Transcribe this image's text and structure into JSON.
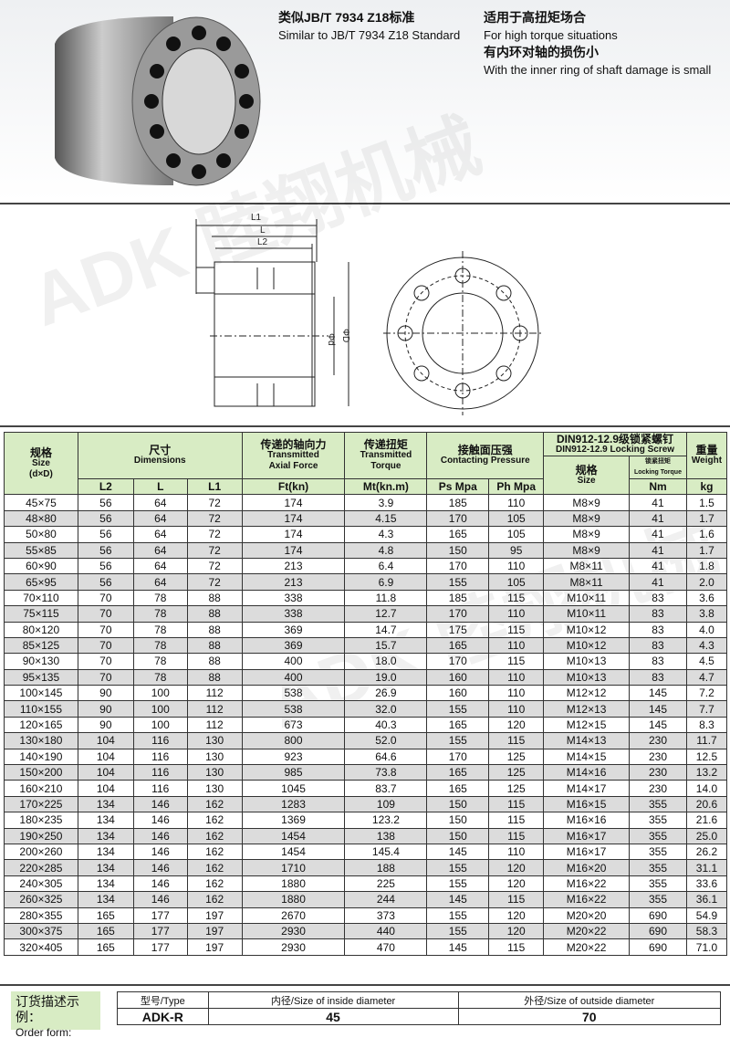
{
  "features": [
    {
      "cn": "类似JB/T 7934 Z18标准",
      "en": "Similar to JB/T 7934 Z18 Standard"
    },
    {
      "cn": "适用于高扭矩场合",
      "en": "For high torque situations"
    },
    {
      "cn": "有内环对轴的损伤小",
      "en": "With the inner ring of shaft damage is small"
    }
  ],
  "drawing": {
    "l1": "L1",
    "l": "L",
    "l2": "L2",
    "d": "Φd",
    "D": "ΦD"
  },
  "watermark": "ADK 睦翔机械",
  "table": {
    "headers": {
      "size_cn": "规格",
      "size_en": "Size",
      "size_dxD": "(d×D)",
      "dim_cn": "尺寸",
      "dim_en": "Dimensions",
      "force_cn": "传递的轴向力",
      "force_en1": "Transmitted",
      "force_en2": "Axial Force",
      "torque_cn": "传递扭矩",
      "torque_en1": "Transmitted",
      "torque_en2": "Torque",
      "press_cn": "接触面压强",
      "press_en": "Contacting Pressure",
      "screw_cn": "DIN912-12.9级锁紧螺钉",
      "screw_en": "DIN912-12.9 Locking Screw",
      "screw_size_cn": "规格",
      "screw_size_en": "Size",
      "lock_cn": "锁紧扭矩",
      "lock_en": "Locking Torque",
      "weight_cn": "重量",
      "weight_en": "Weight",
      "L2": "L2",
      "L": "L",
      "L1": "L1",
      "Ft": "Ft(kn)",
      "Mt": "Mt(kn.m)",
      "Ps": "Ps Mpa",
      "Ph": "Ph Mpa",
      "Nm": "Nm",
      "kg": "kg"
    },
    "rows": [
      [
        "45×75",
        "56",
        "64",
        "72",
        "174",
        "3.9",
        "185",
        "110",
        "M8×9",
        "41",
        "1.5"
      ],
      [
        "48×80",
        "56",
        "64",
        "72",
        "174",
        "4.15",
        "170",
        "105",
        "M8×9",
        "41",
        "1.7"
      ],
      [
        "50×80",
        "56",
        "64",
        "72",
        "174",
        "4.3",
        "165",
        "105",
        "M8×9",
        "41",
        "1.6"
      ],
      [
        "55×85",
        "56",
        "64",
        "72",
        "174",
        "4.8",
        "150",
        "95",
        "M8×9",
        "41",
        "1.7"
      ],
      [
        "60×90",
        "56",
        "64",
        "72",
        "213",
        "6.4",
        "170",
        "110",
        "M8×11",
        "41",
        "1.8"
      ],
      [
        "65×95",
        "56",
        "64",
        "72",
        "213",
        "6.9",
        "155",
        "105",
        "M8×11",
        "41",
        "2.0"
      ],
      [
        "70×110",
        "70",
        "78",
        "88",
        "338",
        "11.8",
        "185",
        "115",
        "M10×11",
        "83",
        "3.6"
      ],
      [
        "75×115",
        "70",
        "78",
        "88",
        "338",
        "12.7",
        "170",
        "110",
        "M10×11",
        "83",
        "3.8"
      ],
      [
        "80×120",
        "70",
        "78",
        "88",
        "369",
        "14.7",
        "175",
        "115",
        "M10×12",
        "83",
        "4.0"
      ],
      [
        "85×125",
        "70",
        "78",
        "88",
        "369",
        "15.7",
        "165",
        "110",
        "M10×12",
        "83",
        "4.3"
      ],
      [
        "90×130",
        "70",
        "78",
        "88",
        "400",
        "18.0",
        "170",
        "115",
        "M10×13",
        "83",
        "4.5"
      ],
      [
        "95×135",
        "70",
        "78",
        "88",
        "400",
        "19.0",
        "160",
        "110",
        "M10×13",
        "83",
        "4.7"
      ],
      [
        "100×145",
        "90",
        "100",
        "112",
        "538",
        "26.9",
        "160",
        "110",
        "M12×12",
        "145",
        "7.2"
      ],
      [
        "110×155",
        "90",
        "100",
        "112",
        "538",
        "32.0",
        "155",
        "110",
        "M12×13",
        "145",
        "7.7"
      ],
      [
        "120×165",
        "90",
        "100",
        "112",
        "673",
        "40.3",
        "165",
        "120",
        "M12×15",
        "145",
        "8.3"
      ],
      [
        "130×180",
        "104",
        "116",
        "130",
        "800",
        "52.0",
        "155",
        "115",
        "M14×13",
        "230",
        "11.7"
      ],
      [
        "140×190",
        "104",
        "116",
        "130",
        "923",
        "64.6",
        "170",
        "125",
        "M14×15",
        "230",
        "12.5"
      ],
      [
        "150×200",
        "104",
        "116",
        "130",
        "985",
        "73.8",
        "165",
        "125",
        "M14×16",
        "230",
        "13.2"
      ],
      [
        "160×210",
        "104",
        "116",
        "130",
        "1045",
        "83.7",
        "165",
        "125",
        "M14×17",
        "230",
        "14.0"
      ],
      [
        "170×225",
        "134",
        "146",
        "162",
        "1283",
        "109",
        "150",
        "115",
        "M16×15",
        "355",
        "20.6"
      ],
      [
        "180×235",
        "134",
        "146",
        "162",
        "1369",
        "123.2",
        "150",
        "115",
        "M16×16",
        "355",
        "21.6"
      ],
      [
        "190×250",
        "134",
        "146",
        "162",
        "1454",
        "138",
        "150",
        "115",
        "M16×17",
        "355",
        "25.0"
      ],
      [
        "200×260",
        "134",
        "146",
        "162",
        "1454",
        "145.4",
        "145",
        "110",
        "M16×17",
        "355",
        "26.2"
      ],
      [
        "220×285",
        "134",
        "146",
        "162",
        "1710",
        "188",
        "155",
        "120",
        "M16×20",
        "355",
        "31.1"
      ],
      [
        "240×305",
        "134",
        "146",
        "162",
        "1880",
        "225",
        "155",
        "120",
        "M16×22",
        "355",
        "33.6"
      ],
      [
        "260×325",
        "134",
        "146",
        "162",
        "1880",
        "244",
        "145",
        "115",
        "M16×22",
        "355",
        "36.1"
      ],
      [
        "280×355",
        "165",
        "177",
        "197",
        "2670",
        "373",
        "155",
        "120",
        "M20×20",
        "690",
        "54.9"
      ],
      [
        "300×375",
        "165",
        "177",
        "197",
        "2930",
        "440",
        "155",
        "120",
        "M20×22",
        "690",
        "58.3"
      ],
      [
        "320×405",
        "165",
        "177",
        "197",
        "2930",
        "470",
        "145",
        "115",
        "M20×22",
        "690",
        "71.0"
      ]
    ]
  },
  "order": {
    "label_cn": "订货描述示例：",
    "label_en": "Order form:",
    "type_h": "型号/Type",
    "inner_h": "内径/Size of inside diameter",
    "outer_h": "外径/Size of outside diameter",
    "type": "ADK-R",
    "inner": "45",
    "outer": "70"
  },
  "colors": {
    "header_bg": "#d8ecc4",
    "alt_row": "#dcdcdc"
  }
}
